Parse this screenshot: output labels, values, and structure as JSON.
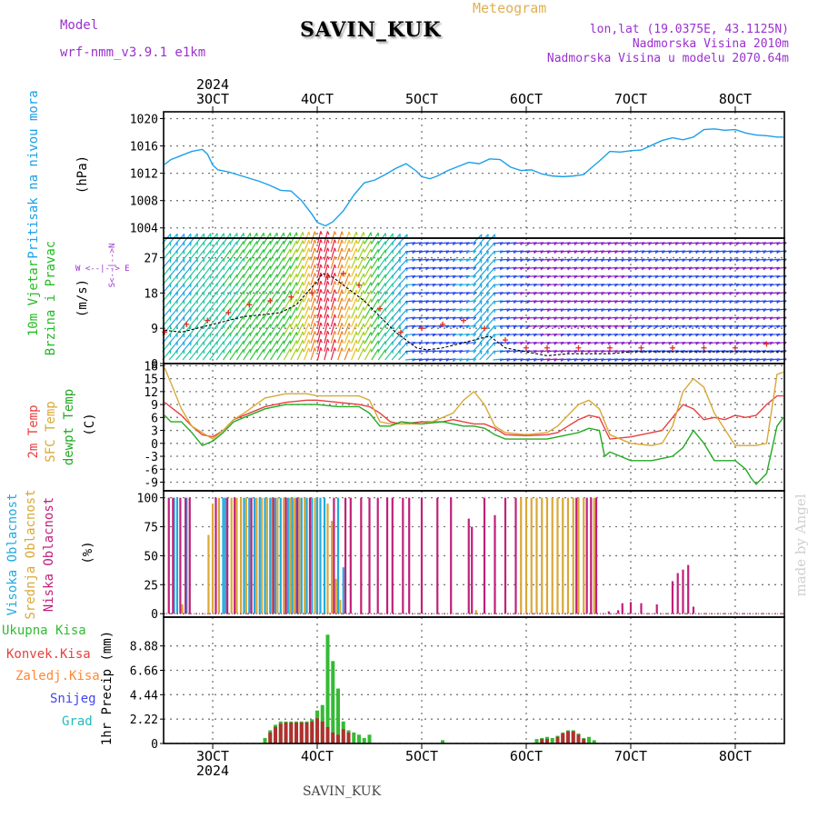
{
  "header": {
    "model_label": "Model",
    "model_name": "wrf-nmm_v3.9.1 e1km",
    "station": "SAVIN_KUK",
    "product": "Meteogram",
    "lonlat": "lon,lat (19.0375E, 43.1125N)",
    "elevation": "Nadmorska Visina 2010m",
    "model_elevation": "Nadmorska Visina u modelu 2070.64m"
  },
  "footer": {
    "station": "SAVIN_KUK",
    "watermark": "made by Angel"
  },
  "colors": {
    "pressure": "#1aa0e8",
    "wind_label": "#22bb22",
    "wind_units_label": "#9b30d0",
    "t2m": "#e84040",
    "tsfc": "#d8a838",
    "tdew": "#22aa22",
    "cloud_high": "#22aadd",
    "cloud_mid": "#d8a838",
    "cloud_low": "#c0207a",
    "precip_total": "#33bb33",
    "precip_conv": "#b03030",
    "precip_frozen": "#ff8833",
    "snow": "#4444ee",
    "grad": "#22bbbb",
    "header_purple": "#9b30d0",
    "header_orange": "#e0b050"
  },
  "chart_data": [
    {
      "type": "line",
      "id": "pressure",
      "ylabel_1": "Pritisak na nivou mora",
      "ylabel_2": "(hPa)",
      "ylim": [
        1002.5,
        1021
      ],
      "yticks": [
        1004,
        1008,
        1012,
        1016,
        1020
      ],
      "grid": true,
      "x_day_ticks": [
        "3OCT",
        "4OCT",
        "5OCT",
        "6OCT",
        "7OCT",
        "8OCT"
      ],
      "x_day_values": [
        3,
        4,
        5,
        6,
        7,
        8
      ],
      "x_year": "2024",
      "xlim": [
        2.53,
        8.47
      ],
      "series": [
        {
          "x": [
            2.54,
            2.6,
            2.7,
            2.8,
            2.9,
            2.95,
            3.0,
            3.05,
            3.15,
            3.3,
            3.45,
            3.55,
            3.65,
            3.75,
            3.85,
            3.95,
            4.0,
            4.08,
            4.15,
            4.25,
            4.35,
            4.45,
            4.55,
            4.65,
            4.75,
            4.85,
            4.95,
            5.0,
            5.08,
            5.15,
            5.25,
            5.35,
            5.45,
            5.55,
            5.65,
            5.75,
            5.85,
            5.95,
            6.05,
            6.15,
            6.25,
            6.35,
            6.45,
            6.55,
            6.6,
            6.7,
            6.8,
            6.9,
            7.0,
            7.1,
            7.2,
            7.3,
            7.4,
            7.5,
            7.6,
            7.7,
            7.8,
            7.9,
            8.0,
            8.1,
            8.2,
            8.3,
            8.4,
            8.46
          ],
          "y": [
            1013.3,
            1014,
            1014.6,
            1015.2,
            1015.5,
            1014.8,
            1013.2,
            1012.5,
            1012.2,
            1011.5,
            1010.8,
            1010.2,
            1009.5,
            1009.4,
            1008,
            1006,
            1004.8,
            1004.3,
            1004.9,
            1006.5,
            1008.8,
            1010.6,
            1011,
            1011.8,
            1012.7,
            1013.4,
            1012.3,
            1011.5,
            1011.2,
            1011.6,
            1012.4,
            1013,
            1013.6,
            1013.4,
            1014.1,
            1014,
            1012.9,
            1012.4,
            1012.5,
            1011.9,
            1011.6,
            1011.5,
            1011.6,
            1011.8,
            1012.5,
            1013.8,
            1015.2,
            1015.1,
            1015.3,
            1015.4,
            1016.1,
            1016.8,
            1017.2,
            1016.9,
            1017.3,
            1018.4,
            1018.5,
            1018.3,
            1018.4,
            1017.9,
            1017.6,
            1017.5,
            1017.3,
            1017.3
          ]
        }
      ]
    },
    {
      "type": "line",
      "id": "wind",
      "ylabel_1": "10m Vjetar",
      "ylabel_2": "Brzina i Pravac",
      "ylabel_3": "(m/s)",
      "legend_compass": "W <--|--> E",
      "legend_vertical": "S<--|-->N",
      "ylim": [
        0,
        32
      ],
      "yticks": [
        0,
        9,
        18,
        27
      ],
      "grid": true,
      "note": "wind barbs (direction+speed) drawn as arrows; line = wind speed, plus markers = gusts",
      "series": [
        {
          "name": "speed",
          "x": [
            2.54,
            2.7,
            2.85,
            3.0,
            3.15,
            3.3,
            3.5,
            3.65,
            3.8,
            3.9,
            4.0,
            4.05,
            4.15,
            4.3,
            4.45,
            4.6,
            4.75,
            4.85,
            4.95,
            5.05,
            5.2,
            5.35,
            5.5,
            5.65,
            5.8,
            6.0,
            6.2,
            6.4,
            6.6,
            6.8,
            7.0,
            7.2,
            7.4,
            7.6,
            7.8,
            8.0,
            8.2,
            8.46
          ],
          "y": [
            8.5,
            8,
            9,
            10,
            11,
            12,
            12.5,
            13,
            15,
            18,
            21,
            23,
            22,
            19,
            16,
            12,
            8,
            6,
            4,
            3.5,
            4,
            5,
            6,
            7,
            4,
            3,
            2,
            2.5,
            2.5,
            2.5,
            3,
            3,
            3,
            3,
            3,
            3,
            3,
            3
          ]
        },
        {
          "name": "gust",
          "x": [
            2.54,
            2.75,
            2.95,
            3.15,
            3.35,
            3.55,
            3.75,
            3.95,
            4.1,
            4.25,
            4.4,
            4.6,
            4.8,
            5.0,
            5.2,
            5.4,
            5.6,
            5.8,
            6.0,
            6.2,
            6.5,
            6.8,
            7.1,
            7.4,
            7.7,
            8.0,
            8.3
          ],
          "y": [
            8,
            10,
            11,
            13,
            15,
            16,
            17,
            18,
            22,
            23,
            20,
            14,
            8,
            9,
            10,
            11,
            9,
            6,
            4,
            4,
            4,
            4,
            4,
            4,
            4,
            4,
            5
          ]
        }
      ]
    },
    {
      "type": "line",
      "id": "temperature",
      "ylabel_1": "2m Temp",
      "ylabel_2": "SFC Temp",
      "ylabel_3": "dewpt Temp",
      "ylabel_4": "(C)",
      "ylim": [
        -11,
        18.5
      ],
      "yticks": [
        -9,
        -6,
        -3,
        0,
        3,
        6,
        9,
        12,
        15,
        18
      ],
      "grid": true,
      "series": [
        {
          "name": "2m Temp",
          "x": [
            2.54,
            2.7,
            2.8,
            2.9,
            3.0,
            3.1,
            3.2,
            3.3,
            3.5,
            3.7,
            3.9,
            4.0,
            4.2,
            4.4,
            4.5,
            4.6,
            4.7,
            4.8,
            5.0,
            5.2,
            5.3,
            5.5,
            5.6,
            5.7,
            5.8,
            6.0,
            6.2,
            6.3,
            6.4,
            6.5,
            6.6,
            6.7,
            6.8,
            7.0,
            7.2,
            7.3,
            7.4,
            7.5,
            7.6,
            7.7,
            7.8,
            7.9,
            8.0,
            8.1,
            8.2,
            8.3,
            8.4,
            8.46
          ],
          "y": [
            9.5,
            6.5,
            4,
            2,
            1.5,
            3,
            5.5,
            6.5,
            8.5,
            9.5,
            10,
            10,
            9.5,
            9,
            8.5,
            7,
            5,
            4.5,
            5,
            5,
            5.5,
            4.5,
            4.5,
            3.5,
            2,
            1.8,
            2,
            2.5,
            4,
            5.5,
            6.5,
            6,
            1,
            1.5,
            2.5,
            3,
            6,
            9,
            8,
            5.5,
            6,
            5.5,
            6.5,
            6,
            6.5,
            9,
            11,
            11
          ]
        },
        {
          "name": "SFC Temp",
          "x": [
            2.54,
            2.6,
            2.7,
            2.8,
            2.9,
            3.0,
            3.1,
            3.2,
            3.3,
            3.5,
            3.7,
            3.9,
            4.0,
            4.2,
            4.4,
            4.5,
            4.6,
            4.7,
            4.8,
            5.0,
            5.1,
            5.3,
            5.4,
            5.5,
            5.6,
            5.7,
            5.8,
            6.0,
            6.2,
            6.3,
            6.4,
            6.5,
            6.6,
            6.7,
            6.8,
            7.0,
            7.2,
            7.3,
            7.4,
            7.5,
            7.6,
            7.7,
            7.8,
            8.0,
            8.1,
            8.2,
            8.3,
            8.4,
            8.46
          ],
          "y": [
            17.5,
            14,
            8,
            4,
            2.5,
            1,
            3,
            5.5,
            7,
            10.5,
            11.5,
            11.5,
            11,
            11,
            11,
            10,
            5,
            4.5,
            4.5,
            4.5,
            5,
            7,
            10,
            12,
            9,
            4,
            2.5,
            2,
            2.5,
            4,
            6.5,
            9,
            10,
            8,
            2,
            0,
            -0.5,
            0,
            4,
            12,
            15,
            13,
            7,
            -0.5,
            -0.5,
            -0.5,
            0,
            16,
            16.5
          ]
        },
        {
          "name": "dewpt Temp",
          "x": [
            2.54,
            2.6,
            2.7,
            2.8,
            2.9,
            3.0,
            3.1,
            3.2,
            3.3,
            3.5,
            3.7,
            3.9,
            4.0,
            4.2,
            4.4,
            4.5,
            4.6,
            4.7,
            4.8,
            5.0,
            5.2,
            5.4,
            5.5,
            5.6,
            5.7,
            5.8,
            6.0,
            6.2,
            6.3,
            6.4,
            6.5,
            6.6,
            6.7,
            6.75,
            6.8,
            6.9,
            7.0,
            7.1,
            7.2,
            7.3,
            7.4,
            7.5,
            7.6,
            7.7,
            7.8,
            7.9,
            8.0,
            8.1,
            8.15,
            8.2,
            8.3,
            8.4,
            8.46
          ],
          "y": [
            6.5,
            5,
            5,
            2.5,
            -0.5,
            0.5,
            2.5,
            5,
            6,
            8,
            9,
            9,
            9,
            8.5,
            8.5,
            7,
            4,
            4,
            5,
            4.5,
            5,
            4,
            4,
            3.5,
            2,
            1,
            1,
            1,
            1.5,
            2,
            2.5,
            3.5,
            3,
            -3,
            -2,
            -3,
            -4,
            -4,
            -4,
            -3.5,
            -3,
            -1,
            3,
            0,
            -4,
            -4,
            -4,
            -6,
            -8,
            -9.5,
            -7,
            4,
            6
          ]
        }
      ]
    },
    {
      "type": "bar",
      "id": "clouds",
      "ylabel_1": "Visoka Oblacnost",
      "ylabel_2": "Srednja Oblacnost",
      "ylabel_3": "Niska Oblacnost",
      "ylabel_4": "(%)",
      "ylim": [
        -3,
        106
      ],
      "yticks": [
        0,
        25,
        50,
        75,
        100
      ],
      "grid": true,
      "series": [
        {
          "name": "Visoka Oblacnost",
          "x": [
            2.63,
            2.66,
            2.75,
            3.1,
            3.12,
            3.3,
            3.35,
            3.4,
            3.45,
            3.5,
            3.55,
            3.6,
            3.65,
            3.72,
            3.76,
            3.8,
            3.85,
            3.9,
            3.95,
            4.0,
            4.03,
            4.07,
            4.2,
            4.25
          ],
          "y": [
            100,
            100,
            100,
            100,
            100,
            100,
            100,
            100,
            100,
            100,
            100,
            100,
            100,
            100,
            100,
            100,
            100,
            100,
            100,
            100,
            100,
            100,
            100,
            40
          ]
        },
        {
          "name": "Srednja Oblacnost",
          "x": [
            2.71,
            2.96,
            3.0,
            3.06,
            3.18,
            3.23,
            3.27,
            3.32,
            3.42,
            3.47,
            3.52,
            3.57,
            3.62,
            3.68,
            3.74,
            3.78,
            3.83,
            3.88,
            3.98,
            4.1,
            4.14,
            4.18,
            4.22,
            5.52,
            5.95,
            6.0,
            6.05,
            6.1,
            6.15,
            6.2,
            6.25,
            6.3,
            6.35,
            6.4,
            6.45,
            6.5,
            6.55,
            6.65
          ],
          "y": [
            8,
            68,
            95,
            100,
            100,
            100,
            100,
            100,
            100,
            100,
            100,
            100,
            100,
            100,
            100,
            100,
            100,
            100,
            100,
            95,
            80,
            30,
            12,
            3,
            100,
            100,
            100,
            100,
            100,
            100,
            100,
            100,
            100,
            100,
            100,
            100,
            100,
            100
          ]
        },
        {
          "name": "Niska Oblacnost",
          "x": [
            2.58,
            2.62,
            2.69,
            2.74,
            2.78,
            3.03,
            3.14,
            3.21,
            3.37,
            3.58,
            3.7,
            3.81,
            3.93,
            4.16,
            4.27,
            4.32,
            4.42,
            4.5,
            4.58,
            4.67,
            4.72,
            4.82,
            4.88,
            5.0,
            5.15,
            5.28,
            5.45,
            5.48,
            5.6,
            5.7,
            5.8,
            5.9,
            6.48,
            6.58,
            6.62,
            6.67,
            6.79,
            6.88,
            6.92,
            7.0,
            7.1,
            7.25,
            7.4,
            7.45,
            7.5,
            7.55,
            7.6
          ],
          "y": [
            100,
            100,
            100,
            100,
            100,
            100,
            100,
            100,
            100,
            100,
            100,
            100,
            100,
            100,
            100,
            100,
            100,
            100,
            100,
            100,
            100,
            100,
            100,
            100,
            100,
            100,
            82,
            75,
            100,
            85,
            100,
            100,
            100,
            100,
            100,
            100,
            2,
            3,
            9,
            10,
            9,
            8,
            28,
            35,
            38,
            42,
            6
          ]
        }
      ]
    },
    {
      "type": "bar",
      "id": "precip",
      "ylabel_1": "1hr Precip",
      "ylabel_2": "(mm)",
      "legend": [
        "Ukupna Kisa",
        "Konvek.Kisa",
        "Zaledj.Kisa",
        "Snijeg",
        "Grad"
      ],
      "ylim": [
        0,
        11.5
      ],
      "yticks": [
        0,
        2.22,
        4.44,
        6.66,
        8.88
      ],
      "ytick_labels": [
        "0",
        "2.22",
        "4.44",
        "6.66",
        "8.88"
      ],
      "grid": true,
      "series": [
        {
          "name": "Ukupna Kisa",
          "x": [
            3.5,
            3.55,
            3.6,
            3.65,
            3.7,
            3.75,
            3.8,
            3.85,
            3.9,
            3.95,
            4.0,
            4.05,
            4.1,
            4.15,
            4.2,
            4.25,
            4.3,
            4.35,
            4.4,
            4.45,
            4.5,
            5.2,
            6.1,
            6.15,
            6.2,
            6.25,
            6.3,
            6.35,
            6.4,
            6.45,
            6.5,
            6.55,
            6.6,
            6.65
          ],
          "y": [
            0.5,
            1.2,
            1.7,
            2.0,
            2.0,
            2.0,
            2.0,
            2.0,
            2.0,
            2.2,
            3.0,
            3.5,
            9.9,
            7.5,
            5.0,
            2.0,
            1.2,
            1.0,
            0.8,
            0.5,
            0.8,
            0.3,
            0.4,
            0.5,
            0.6,
            0.5,
            0.7,
            1.0,
            1.2,
            1.2,
            0.9,
            0.5,
            0.6,
            0.3
          ]
        },
        {
          "name": "Konvek.Kisa",
          "x": [
            3.55,
            3.6,
            3.65,
            3.7,
            3.75,
            3.8,
            3.85,
            3.9,
            3.95,
            4.0,
            4.05,
            4.1,
            4.15,
            4.2,
            4.25,
            4.3,
            6.15,
            6.2,
            6.3,
            6.35,
            6.4,
            6.45,
            6.5,
            6.55
          ],
          "y": [
            1.0,
            1.5,
            1.8,
            1.9,
            1.9,
            1.9,
            1.9,
            1.9,
            2.0,
            2.3,
            2.0,
            1.5,
            1.0,
            0.8,
            1.3,
            1.0,
            0.4,
            0.4,
            0.6,
            0.9,
            1.1,
            1.1,
            0.8,
            0.4
          ]
        }
      ]
    }
  ]
}
